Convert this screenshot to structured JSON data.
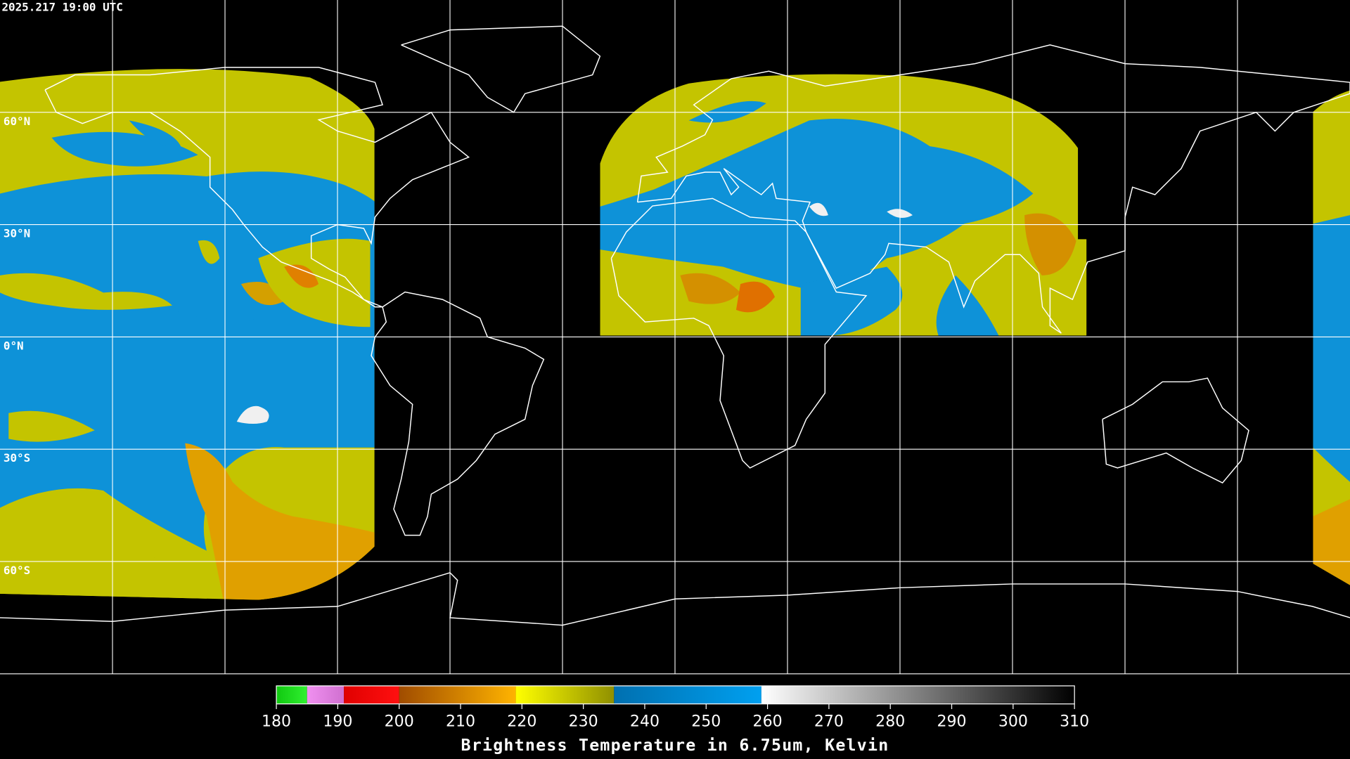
{
  "timestamp": "2025.217 19:00 UTC",
  "map": {
    "lat_labels": [
      {
        "value": 60,
        "label": "60°N"
      },
      {
        "value": 30,
        "label": "30°N"
      },
      {
        "value": 0,
        "label": "0°N"
      },
      {
        "value": -30,
        "label": "30°S"
      },
      {
        "value": -60,
        "label": "60°S"
      }
    ]
  },
  "colorbar": {
    "title": "Brightness Temperature in 6.75um, Kelvin",
    "range": [
      180,
      310
    ],
    "ticks": [
      180,
      190,
      200,
      210,
      220,
      230,
      240,
      250,
      260,
      270,
      280,
      290,
      300,
      310
    ],
    "segments": [
      {
        "from": 180,
        "to": 185,
        "colors": [
          "#10c810",
          "#30f030"
        ]
      },
      {
        "from": 185,
        "to": 191,
        "colors": [
          "#f090f0",
          "#d070d0"
        ]
      },
      {
        "from": 191,
        "to": 200,
        "colors": [
          "#e00000",
          "#ff1010"
        ]
      },
      {
        "from": 200,
        "to": 219,
        "colors": [
          "#a04c00",
          "#ffb400"
        ]
      },
      {
        "from": 219,
        "to": 235,
        "colors": [
          "#ffff00",
          "#909000"
        ]
      },
      {
        "from": 235,
        "to": 259,
        "colors": [
          "#0070b0",
          "#00a0f0"
        ]
      },
      {
        "from": 259,
        "to": 310,
        "colors": [
          "#ffffff",
          "#000000"
        ]
      }
    ]
  }
}
